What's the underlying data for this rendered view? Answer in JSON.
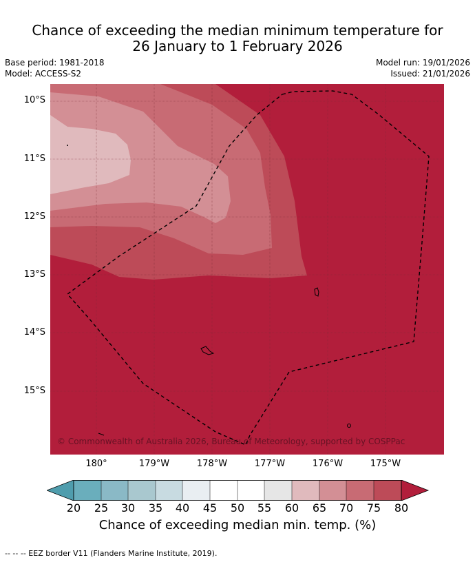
{
  "title": {
    "line1": "Chance of exceeding the median minimum temperature for",
    "line2": "26 January to 1 February 2026"
  },
  "meta": {
    "base_period": "Base period: 1981-2018",
    "model": "Model: ACCESS-S2",
    "model_run": "Model run: 19/01/2026",
    "issued": "Issued: 21/01/2026"
  },
  "map": {
    "lat_labels": [
      "10°S",
      "11°S",
      "12°S",
      "13°S",
      "14°S",
      "15°S"
    ],
    "lon_labels": [
      "180°",
      "179°W",
      "178°W",
      "177°W",
      "176°W",
      "175°W"
    ],
    "copyright": "© Commonwealth of Australia 2026, Bureau of Meteorology, supported by COSPPac",
    "colors": {
      "p60_65": "#e0babd",
      "p65_70": "#d38f95",
      "p70_75": "#c86b74",
      "p75_80": "#bd4b58",
      "p80plus": "#b21e3b"
    }
  },
  "legend": {
    "labels": [
      "20",
      "25",
      "30",
      "35",
      "40",
      "45",
      "50",
      "55",
      "60",
      "65",
      "70",
      "75",
      "80"
    ],
    "colors": [
      "#4f9dad",
      "#6aaebc",
      "#8ab9c6",
      "#a9c8cf",
      "#c8dbe1",
      "#e9eef2",
      "#ffffff",
      "#ffffff",
      "#e6e6e6",
      "#e0babd",
      "#d38f95",
      "#c86b74",
      "#bd4b58",
      "#b21e3b"
    ],
    "title": "Chance of exceeding median min. temp. (%)"
  },
  "footnote": "--  --  -- EEZ border V11 (Flanders Marine Institute, 2019)."
}
